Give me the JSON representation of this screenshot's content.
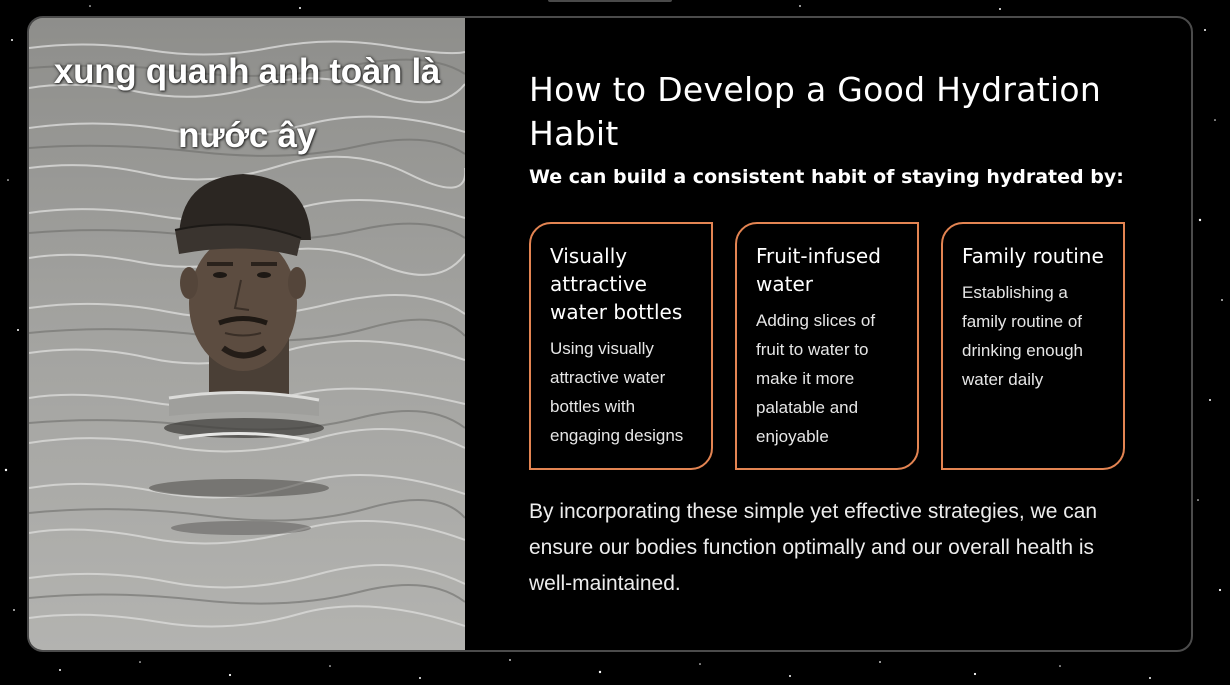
{
  "meme": {
    "caption_line1": "xung quanh anh toàn là",
    "caption_line2": "nước ây"
  },
  "slide": {
    "title": "How to Develop a Good Hydration Habit",
    "subtitle": "We can build a consistent habit of staying hydrated by:",
    "cards": [
      {
        "title": "Visually attractive water bottles",
        "text": "Using visually attractive water bottles with engaging designs"
      },
      {
        "title": "Fruit-infused water",
        "text": "Adding slices of fruit to water to make it more palatable and enjoyable"
      },
      {
        "title": "Family routine",
        "text": "Establishing a family routine of drinking enough water daily"
      }
    ],
    "closing": "By incorporating these simple yet effective strategies, we can ensure our bodies function optimally and our overall health is well-maintained."
  },
  "colors": {
    "background": "#000000",
    "card_border": "#e38452",
    "slide_border": "#4b4b4b"
  }
}
